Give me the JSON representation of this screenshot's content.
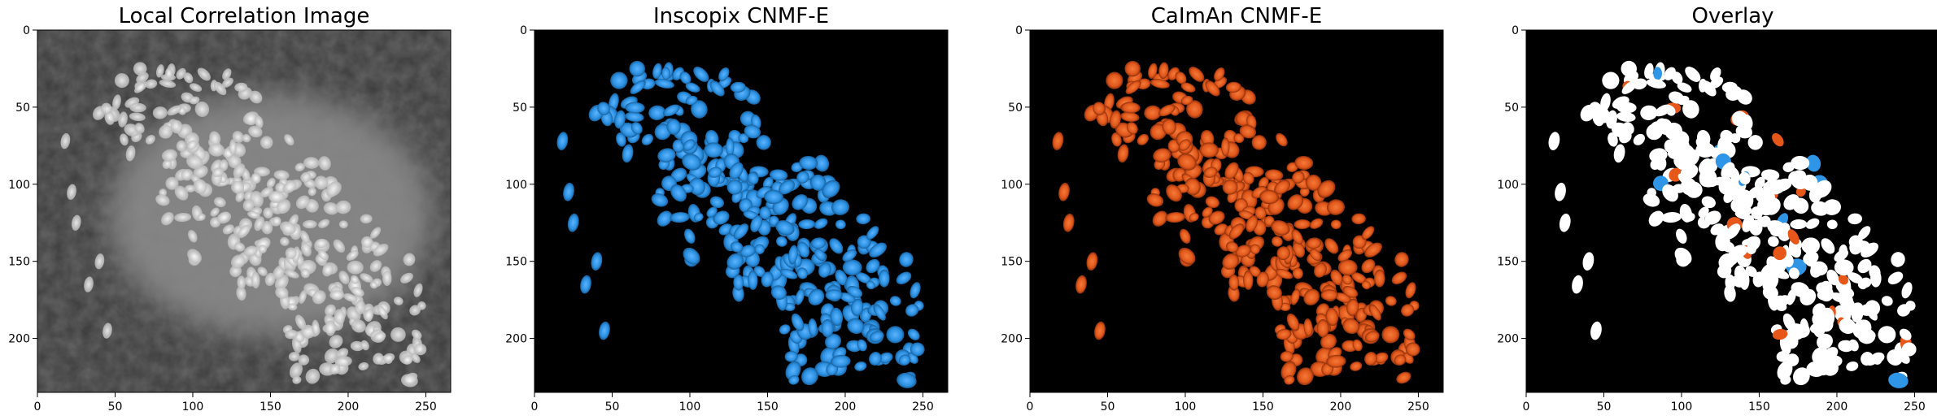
{
  "colors": {
    "inscopix": "#2f95e6",
    "caiman": "#e8571a",
    "overlay_both": "#ffffff",
    "background": "#000000"
  },
  "panels": [
    {
      "title": "Local Correlation Image",
      "kind": "correlation"
    },
    {
      "title": "Inscopix CNMF-E",
      "kind": "inscopix"
    },
    {
      "title": "CaImAn CNMF-E",
      "kind": "caiman"
    },
    {
      "title": "Overlay",
      "kind": "overlay"
    }
  ],
  "axes": {
    "x_range": [
      0,
      266
    ],
    "y_range": [
      235,
      0
    ],
    "xticks": [
      "0",
      "50",
      "100",
      "150",
      "200",
      "250"
    ],
    "yticks": [
      "0",
      "50",
      "100",
      "150",
      "200"
    ]
  }
}
